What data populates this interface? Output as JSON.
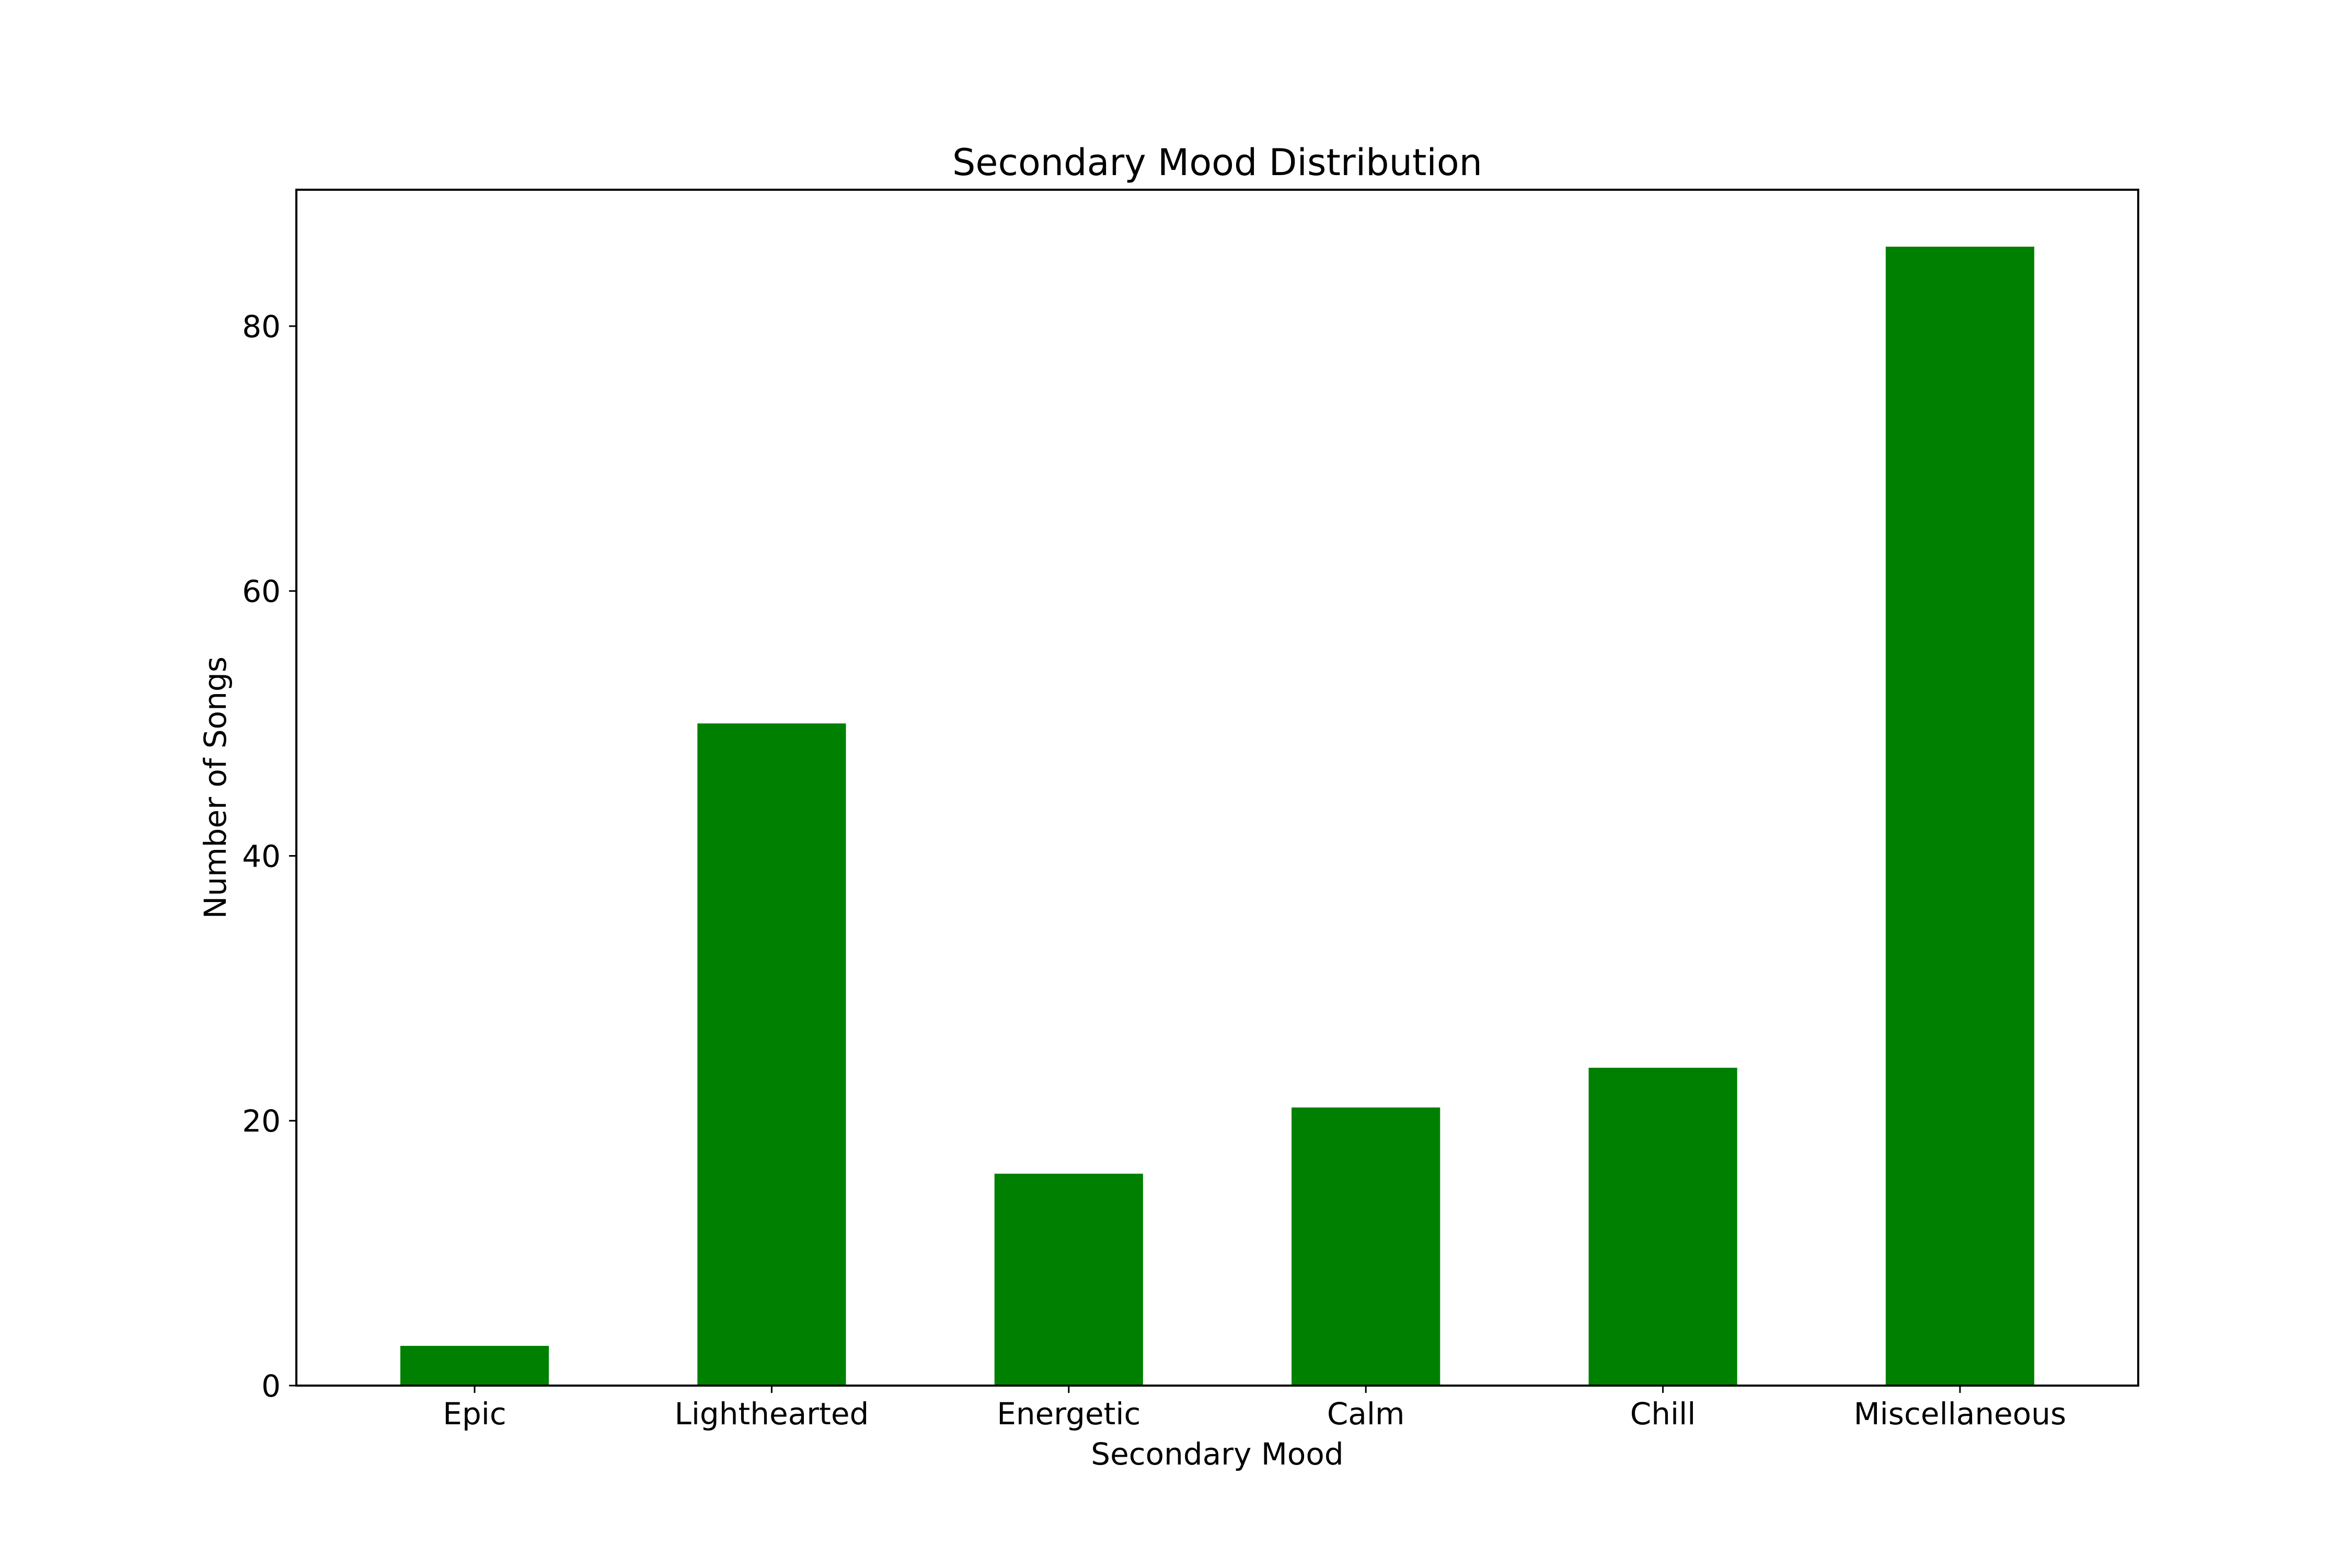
{
  "chart_data": {
    "type": "bar",
    "title": "Secondary Mood Distribution",
    "xlabel": "Secondary Mood",
    "ylabel": "Number of Songs",
    "categories": [
      "Epic",
      "Lighthearted",
      "Energetic",
      "Calm",
      "Chill",
      "Miscellaneous"
    ],
    "values": [
      3,
      50,
      16,
      21,
      24,
      86
    ],
    "ylim": [
      0,
      90.3
    ],
    "yticks": [
      0,
      20,
      40,
      60,
      80
    ],
    "bar_color": "#008000",
    "grid": false,
    "legend": "none"
  }
}
